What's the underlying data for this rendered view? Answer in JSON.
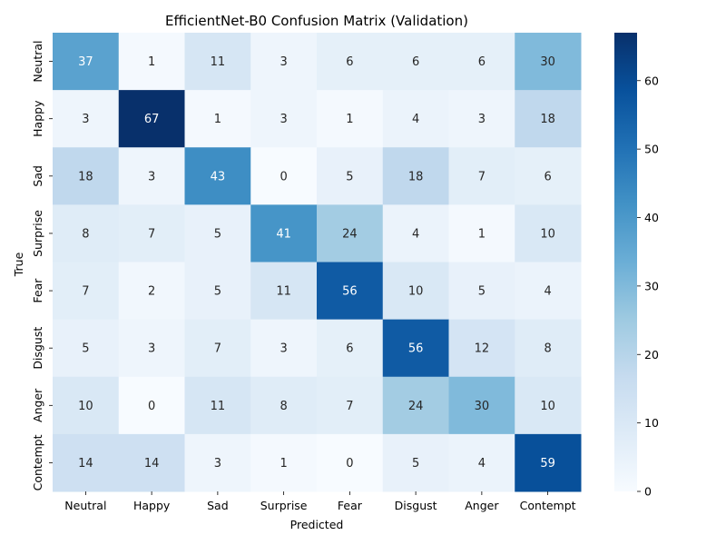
{
  "chart_data": {
    "type": "heatmap",
    "title": "EfficientNet-B0 Confusion Matrix (Validation)",
    "xlabel": "Predicted",
    "ylabel": "True",
    "x_categories": [
      "Neutral",
      "Happy",
      "Sad",
      "Surprise",
      "Fear",
      "Disgust",
      "Anger",
      "Contempt"
    ],
    "y_categories": [
      "Neutral",
      "Happy",
      "Sad",
      "Surprise",
      "Fear",
      "Disgust",
      "Anger",
      "Contempt"
    ],
    "values": [
      [
        37,
        1,
        11,
        3,
        6,
        6,
        6,
        30
      ],
      [
        3,
        67,
        1,
        3,
        1,
        4,
        3,
        18
      ],
      [
        18,
        3,
        43,
        0,
        5,
        18,
        7,
        6
      ],
      [
        8,
        7,
        5,
        41,
        24,
        4,
        1,
        10
      ],
      [
        7,
        2,
        5,
        11,
        56,
        10,
        5,
        4
      ],
      [
        5,
        3,
        7,
        3,
        6,
        56,
        12,
        8
      ],
      [
        10,
        0,
        11,
        8,
        7,
        24,
        30,
        10
      ],
      [
        14,
        14,
        3,
        1,
        0,
        5,
        4,
        59
      ]
    ],
    "colorbar": {
      "min": 0,
      "max": 67,
      "ticks": [
        0,
        10,
        20,
        30,
        40,
        50,
        60
      ],
      "colormap": "Blues",
      "low_color": "#f7fbff",
      "high_color": "#08306b"
    },
    "grid": false,
    "legend": "colorbar-right"
  }
}
